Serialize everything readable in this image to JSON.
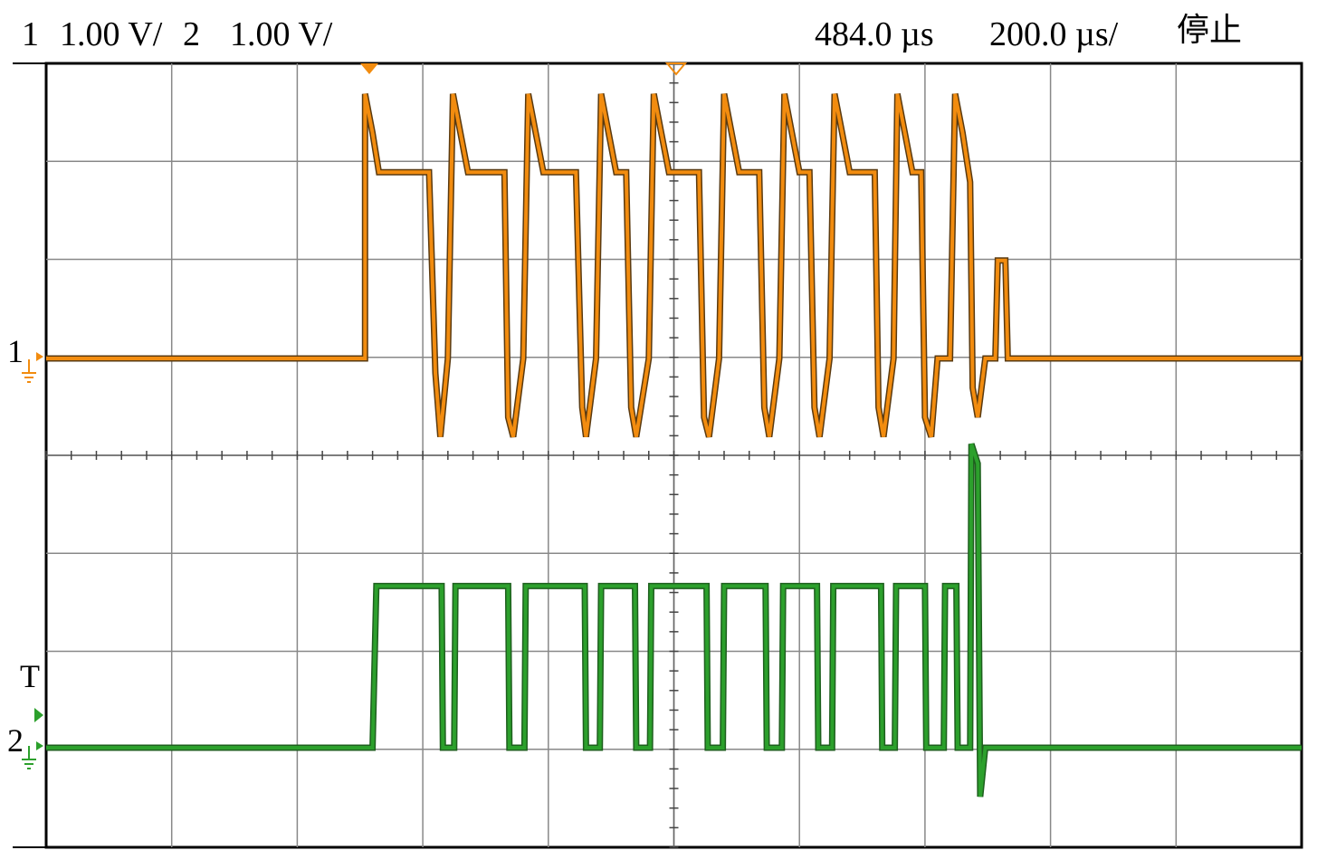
{
  "header": {
    "ch1_num": "1",
    "ch1_scale": "1.00 V/",
    "ch2_num": "2",
    "ch2_scale": "1.00 V/",
    "delay": "484.0 µs",
    "timebase": "200.0 µs/",
    "status": "停止"
  },
  "markers": {
    "ch1": "1",
    "trigger": "T",
    "ch2": "2"
  },
  "colors": {
    "ch1": "#f28c0f",
    "ch1_edge": "#5a3a10",
    "ch2": "#2ca02c",
    "ch2_edge": "#1e5f1e",
    "grid": "#000000"
  },
  "chart_data": {
    "type": "line",
    "title": "",
    "xlabel": "",
    "ylabel": "",
    "grid": true,
    "divisions": {
      "x": 10,
      "y": 8
    },
    "x_unit": "µs",
    "x_per_div": 200.0,
    "y_per_div_ch1": 1.0,
    "y_per_div_ch2": 1.0,
    "series": [
      {
        "name": "1",
        "color": "#f28c0f",
        "baseline_div": 0,
        "points": [
          [
            0,
            0
          ],
          [
            2.54,
            0
          ],
          [
            2.54,
            2.7
          ],
          [
            2.6,
            2.3
          ],
          [
            2.65,
            1.9
          ],
          [
            3.05,
            1.9
          ],
          [
            3.1,
            -0.15
          ],
          [
            3.14,
            -0.8
          ],
          [
            3.2,
            0
          ],
          [
            3.24,
            2.7
          ],
          [
            3.3,
            2.3
          ],
          [
            3.36,
            1.9
          ],
          [
            3.65,
            1.9
          ],
          [
            3.68,
            -0.6
          ],
          [
            3.72,
            -0.8
          ],
          [
            3.8,
            0
          ],
          [
            3.84,
            2.7
          ],
          [
            3.9,
            2.3
          ],
          [
            3.96,
            1.9
          ],
          [
            4.22,
            1.9
          ],
          [
            4.27,
            -0.5
          ],
          [
            4.3,
            -0.8
          ],
          [
            4.38,
            0
          ],
          [
            4.42,
            2.7
          ],
          [
            4.48,
            2.3
          ],
          [
            4.54,
            1.9
          ],
          [
            4.62,
            1.9
          ],
          [
            4.66,
            -0.5
          ],
          [
            4.7,
            -0.8
          ],
          [
            4.8,
            0
          ],
          [
            4.84,
            2.7
          ],
          [
            4.9,
            2.3
          ],
          [
            4.96,
            1.9
          ],
          [
            5.2,
            1.9
          ],
          [
            5.24,
            -0.6
          ],
          [
            5.28,
            -0.8
          ],
          [
            5.36,
            0
          ],
          [
            5.4,
            2.7
          ],
          [
            5.46,
            2.3
          ],
          [
            5.52,
            1.9
          ],
          [
            5.68,
            1.9
          ],
          [
            5.72,
            -0.5
          ],
          [
            5.76,
            -0.8
          ],
          [
            5.84,
            0
          ],
          [
            5.88,
            2.7
          ],
          [
            5.94,
            2.3
          ],
          [
            6.0,
            1.9
          ],
          [
            6.08,
            1.9
          ],
          [
            6.12,
            -0.5
          ],
          [
            6.16,
            -0.8
          ],
          [
            6.24,
            0
          ],
          [
            6.28,
            2.7
          ],
          [
            6.34,
            2.3
          ],
          [
            6.4,
            1.9
          ],
          [
            6.6,
            1.9
          ],
          [
            6.63,
            -0.5
          ],
          [
            6.67,
            -0.8
          ],
          [
            6.75,
            0
          ],
          [
            6.78,
            2.7
          ],
          [
            6.84,
            2.3
          ],
          [
            6.9,
            1.9
          ],
          [
            6.97,
            1.9
          ],
          [
            7.0,
            -0.6
          ],
          [
            7.05,
            -0.8
          ],
          [
            7.1,
            0
          ],
          [
            7.2,
            0
          ],
          [
            7.24,
            2.7
          ],
          [
            7.3,
            2.3
          ],
          [
            7.36,
            1.8
          ],
          [
            7.38,
            -0.3
          ],
          [
            7.42,
            -0.6
          ],
          [
            7.48,
            0
          ],
          [
            7.56,
            0
          ],
          [
            7.58,
            1.0
          ],
          [
            7.64,
            1.0
          ],
          [
            7.66,
            0
          ],
          [
            10,
            0
          ]
        ]
      },
      {
        "name": "2",
        "color": "#2ca02c",
        "baseline_div": -4,
        "points": [
          [
            0,
            0
          ],
          [
            2.6,
            0
          ],
          [
            2.63,
            1.65
          ],
          [
            2.7,
            1.65
          ],
          [
            3.15,
            1.65
          ],
          [
            3.16,
            0
          ],
          [
            3.25,
            0
          ],
          [
            3.26,
            1.65
          ],
          [
            3.68,
            1.65
          ],
          [
            3.69,
            0
          ],
          [
            3.81,
            0
          ],
          [
            3.82,
            1.65
          ],
          [
            4.29,
            1.65
          ],
          [
            4.3,
            0
          ],
          [
            4.41,
            0
          ],
          [
            4.42,
            1.65
          ],
          [
            4.69,
            1.65
          ],
          [
            4.7,
            0
          ],
          [
            4.81,
            0
          ],
          [
            4.82,
            1.65
          ],
          [
            5.26,
            1.65
          ],
          [
            5.27,
            0
          ],
          [
            5.39,
            0
          ],
          [
            5.4,
            1.65
          ],
          [
            5.73,
            1.65
          ],
          [
            5.74,
            0
          ],
          [
            5.86,
            0
          ],
          [
            5.87,
            1.65
          ],
          [
            6.14,
            1.65
          ],
          [
            6.15,
            0
          ],
          [
            6.26,
            0
          ],
          [
            6.27,
            1.65
          ],
          [
            6.65,
            1.65
          ],
          [
            6.66,
            0
          ],
          [
            6.76,
            0
          ],
          [
            6.77,
            1.65
          ],
          [
            7.0,
            1.65
          ],
          [
            7.01,
            0
          ],
          [
            7.15,
            0
          ],
          [
            7.16,
            1.65
          ],
          [
            7.25,
            1.65
          ],
          [
            7.26,
            0
          ],
          [
            7.36,
            0
          ],
          [
            7.37,
            3.1
          ],
          [
            7.42,
            2.9
          ],
          [
            7.44,
            -0.5
          ],
          [
            7.48,
            0
          ],
          [
            10,
            0
          ]
        ]
      }
    ]
  }
}
